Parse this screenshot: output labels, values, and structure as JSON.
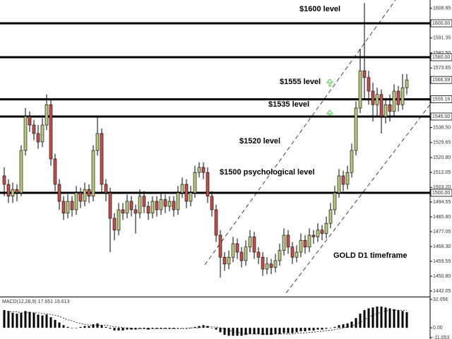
{
  "chart_data": {
    "type": "candlestick",
    "title": "GOLD D1 timeframe",
    "annotations": [
      "$1600 level",
      "$1555 level",
      "$1535 level",
      "$1520 level",
      "$1500 psychological level"
    ],
    "bull_color": "#b7c77c",
    "bear_color": "#c0504d",
    "open": [
      1510,
      1505,
      1498,
      1502,
      1500,
      1525,
      1545,
      1540,
      1535,
      1530,
      1540,
      1552,
      1520,
      1505,
      1495,
      1488,
      1495,
      1490,
      1500,
      1495,
      1502,
      1498,
      1525,
      1535,
      1505,
      1500,
      1485,
      1478,
      1490,
      1488,
      1495,
      1490,
      1488,
      1498,
      1492,
      1488,
      1495,
      1490,
      1496,
      1492,
      1495,
      1490,
      1500,
      1505,
      1495,
      1500,
      1512,
      1515,
      1512,
      1498,
      1490,
      1475,
      1462,
      1458,
      1462,
      1470,
      1465,
      1460,
      1468,
      1474,
      1465,
      1462,
      1455,
      1458,
      1456,
      1460,
      1466,
      1475,
      1468,
      1462,
      1465,
      1472,
      1468,
      1475,
      1474,
      1478,
      1476,
      1482,
      1490,
      1500,
      1510,
      1505,
      1512,
      1525,
      1550,
      1572,
      1568,
      1560,
      1552,
      1558,
      1545,
      1552,
      1548,
      1560,
      1552,
      1562
    ],
    "high": [
      1515,
      1508,
      1506,
      1505,
      1528,
      1550,
      1548,
      1543,
      1540,
      1544,
      1558,
      1555,
      1523,
      1508,
      1498,
      1499,
      1498,
      1504,
      1503,
      1506,
      1505,
      1528,
      1545,
      1538,
      1508,
      1503,
      1488,
      1494,
      1494,
      1499,
      1498,
      1493,
      1502,
      1501,
      1495,
      1498,
      1498,
      1500,
      1499,
      1498,
      1498,
      1504,
      1509,
      1508,
      1504,
      1516,
      1518,
      1518,
      1515,
      1501,
      1493,
      1478,
      1465,
      1466,
      1474,
      1473,
      1468,
      1472,
      1478,
      1477,
      1468,
      1465,
      1462,
      1461,
      1464,
      1470,
      1479,
      1478,
      1471,
      1469,
      1476,
      1475,
      1479,
      1478,
      1482,
      1481,
      1486,
      1494,
      1504,
      1514,
      1513,
      1516,
      1529,
      1554,
      1585,
      1612,
      1572,
      1565,
      1562,
      1561,
      1556,
      1558,
      1564,
      1563,
      1570,
      1570
    ],
    "low": [
      1498,
      1494,
      1494,
      1495,
      1498,
      1522,
      1536,
      1531,
      1526,
      1527,
      1537,
      1516,
      1501,
      1490,
      1484,
      1485,
      1486,
      1487,
      1491,
      1492,
      1494,
      1495,
      1522,
      1500,
      1495,
      1465,
      1472,
      1475,
      1484,
      1485,
      1486,
      1476,
      1485,
      1488,
      1484,
      1485,
      1486,
      1487,
      1488,
      1489,
      1486,
      1487,
      1497,
      1491,
      1492,
      1497,
      1509,
      1508,
      1494,
      1486,
      1471,
      1450,
      1454,
      1455,
      1459,
      1461,
      1456,
      1457,
      1465,
      1461,
      1458,
      1451,
      1452,
      1452,
      1453,
      1457,
      1463,
      1464,
      1458,
      1459,
      1462,
      1464,
      1465,
      1470,
      1471,
      1472,
      1473,
      1479,
      1487,
      1497,
      1501,
      1502,
      1509,
      1522,
      1547,
      1555,
      1552,
      1542,
      1545,
      1535,
      1541,
      1542,
      1545,
      1548,
      1549,
      1558
    ],
    "close": [
      1505,
      1498,
      1502,
      1500,
      1525,
      1545,
      1540,
      1535,
      1530,
      1540,
      1552,
      1520,
      1505,
      1495,
      1488,
      1495,
      1490,
      1500,
      1495,
      1502,
      1498,
      1525,
      1535,
      1505,
      1500,
      1485,
      1478,
      1490,
      1488,
      1495,
      1490,
      1488,
      1498,
      1492,
      1488,
      1495,
      1490,
      1496,
      1492,
      1495,
      1490,
      1500,
      1505,
      1495,
      1500,
      1512,
      1515,
      1512,
      1498,
      1490,
      1475,
      1462,
      1458,
      1462,
      1470,
      1465,
      1460,
      1468,
      1474,
      1465,
      1462,
      1455,
      1458,
      1456,
      1460,
      1466,
      1475,
      1468,
      1462,
      1465,
      1472,
      1468,
      1475,
      1474,
      1478,
      1476,
      1482,
      1490,
      1500,
      1510,
      1505,
      1512,
      1525,
      1550,
      1572,
      1568,
      1560,
      1552,
      1558,
      1545,
      1552,
      1548,
      1560,
      1552,
      1562,
      1566.59
    ],
    "ylim": [
      1438.75,
      1613.75
    ],
    "yticks": [
      {
        "value": 1608.85,
        "label": "1608.85"
      },
      1591.35,
      {
        "value": 1582.5,
        "label": "1582.50"
      },
      1573.65,
      {
        "value": 1538.5,
        "label": "1538.50"
      },
      1529.65,
      {
        "value": 1520.8,
        "label": "1520.80"
      },
      1512.05,
      {
        "value": 1503.2,
        "label": "1503.20"
      },
      1494.55,
      {
        "value": 1485.8,
        "label": "1485.80"
      },
      1477.05,
      {
        "value": 1468.3,
        "label": "1468.30"
      },
      1459.55,
      {
        "value": 1450.8,
        "label": "1450.80"
      },
      1442.05
    ],
    "levels": [
      {
        "value": 1600,
        "label": "1600.00"
      },
      {
        "value": 1580,
        "label": "1580.00"
      },
      1555.16,
      {
        "value": 1545,
        "label": "1545.00"
      },
      {
        "value": 1500,
        "label": "1500.00"
      }
    ],
    "macd": {
      "name": "MACD(12,26,9)",
      "histogram": [
        20,
        19,
        17,
        16,
        17,
        19,
        18,
        17,
        15,
        14,
        15,
        12,
        9,
        6,
        3,
        1,
        0,
        0,
        1,
        2,
        2,
        4,
        5,
        3,
        1,
        -1,
        -3,
        -3,
        -3,
        -2,
        -2,
        -2,
        -1,
        -1,
        -2,
        -1,
        -1,
        -1,
        -1,
        -1,
        -1,
        0,
        0,
        0,
        0,
        1,
        2,
        3,
        2,
        0,
        -2,
        -5,
        -8,
        -9,
        -9,
        -9,
        -9,
        -8,
        -7,
        -7,
        -7,
        -8,
        -8,
        -8,
        -7,
        -7,
        -6,
        -6,
        -6,
        -5,
        -4,
        -4,
        -3,
        -3,
        -2,
        -2,
        -1,
        0,
        1,
        3,
        4,
        5,
        7,
        11,
        16,
        20,
        22,
        23,
        24,
        24,
        23,
        22,
        21,
        20,
        19,
        17.651
      ],
      "signal": [
        18,
        18,
        18,
        18,
        17,
        17,
        17,
        17,
        17,
        16,
        16,
        15,
        14,
        13,
        11,
        9,
        8,
        6,
        5,
        4,
        3,
        3,
        3,
        3,
        3,
        2,
        1,
        1,
        0,
        0,
        -1,
        -1,
        -1,
        -1,
        -1,
        -1,
        -1,
        -1,
        -1,
        -1,
        -1,
        -1,
        -1,
        -1,
        0,
        0,
        0,
        1,
        1,
        1,
        1,
        0,
        -1,
        -3,
        -4,
        -5,
        -6,
        -7,
        -7,
        -7,
        -7,
        -7,
        -7,
        -7,
        -7,
        -7,
        -7,
        -7,
        -7,
        -6,
        -6,
        -6,
        -5,
        -5,
        -4,
        -4,
        -3,
        -3,
        -2,
        -1,
        0,
        1,
        2,
        4,
        6,
        9,
        12,
        14,
        16,
        18,
        19,
        20,
        20,
        20,
        20,
        19.613
      ],
      "ylim": [
        -11.053,
        32.056
      ],
      "yticks": [
        32.056,
        {
          "value": 0,
          "label": "0.00"
        },
        -11.053
      ]
    }
  }
}
